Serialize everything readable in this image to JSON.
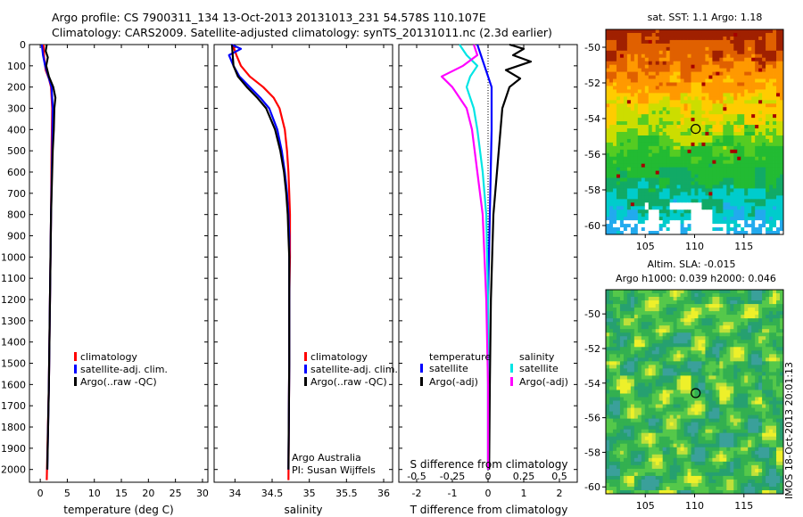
{
  "header": {
    "line1": "Argo profile: CS 7900311_134 13-Oct-2013 20131013_231 54.578S 110.107E",
    "line2": "Climatology: CARS2009. Satellite-adjusted climatology: synTS_20131011.nc (2.3d earlier)"
  },
  "colors": {
    "red": "#ff0000",
    "blue": "#0000ff",
    "black": "#000000",
    "cyan": "#00e5e5",
    "magenta": "#ff00ff"
  },
  "chart_data": [
    {
      "type": "line",
      "id": "temperature",
      "xlabel": "temperature (deg C)",
      "ylabel": "",
      "xlim": [
        -2,
        31
      ],
      "ylim": [
        2060,
        0
      ],
      "xticks": [
        0,
        5,
        10,
        15,
        20,
        25,
        30
      ],
      "yticks": [
        0,
        100,
        200,
        300,
        400,
        500,
        600,
        700,
        800,
        900,
        1000,
        1100,
        1200,
        1300,
        1400,
        1500,
        1600,
        1700,
        1800,
        1900,
        2000
      ],
      "legend": [
        "climatology",
        "satellite-adj. clim.",
        "Argo(..raw -QC)"
      ],
      "legend_position": "lower-center",
      "series": [
        {
          "name": "climatology",
          "color": "#ff0000",
          "depth": [
            0,
            60,
            120,
            160,
            200,
            300,
            500,
            800,
            1200,
            1600,
            2050
          ],
          "values": [
            0.6,
            0.7,
            1.0,
            1.6,
            2.0,
            2.2,
            2.1,
            2.0,
            1.8,
            1.6,
            1.2
          ]
        },
        {
          "name": "satellite-adj. clim.",
          "color": "#0000ff",
          "depth": [
            0,
            50,
            100,
            150,
            200,
            300,
            500,
            800,
            1200,
            1600,
            2000
          ],
          "values": [
            0.3,
            0.5,
            0.9,
            1.5,
            2.1,
            2.3,
            2.2,
            2.0,
            1.8,
            1.6,
            1.3
          ]
        },
        {
          "name": "Argo(..raw -QC)",
          "color": "#000000",
          "depth": [
            0,
            30,
            60,
            100,
            150,
            200,
            250,
            300,
            400,
            500,
            800,
            1200,
            1600,
            2000
          ],
          "values": [
            1.2,
            1.0,
            1.4,
            1.1,
            1.6,
            2.4,
            2.8,
            2.6,
            2.5,
            2.3,
            2.0,
            1.8,
            1.6,
            1.3
          ]
        }
      ]
    },
    {
      "type": "line",
      "id": "salinity",
      "xlabel": "salinity",
      "ylabel": "",
      "xlim": [
        33.72,
        36.12
      ],
      "ylim": [
        2060,
        0
      ],
      "xticks": [
        34,
        34.5,
        35,
        35.5,
        36
      ],
      "xticklabels": [
        "34",
        "34.5",
        "35",
        "35.5",
        "36"
      ],
      "legend": [
        "climatology",
        "satellite-adj. clim.",
        "Argo(..raw -QC)"
      ],
      "legend_position": "lower-right",
      "annotation": [
        "Argo Australia",
        "PI: Susan Wijffels"
      ],
      "series": [
        {
          "name": "climatology",
          "color": "#ff0000",
          "depth": [
            0,
            50,
            100,
            150,
            200,
            250,
            300,
            400,
            500,
            600,
            700,
            800,
            900,
            1000,
            1200,
            1500,
            2050
          ],
          "values": [
            33.97,
            34.02,
            34.08,
            34.2,
            34.38,
            34.52,
            34.6,
            34.67,
            34.7,
            34.72,
            34.73,
            34.74,
            34.74,
            34.74,
            34.73,
            34.73,
            34.72
          ]
        },
        {
          "name": "satellite-adj. clim.",
          "color": "#0000ff",
          "depth": [
            0,
            20,
            50,
            100,
            150,
            200,
            250,
            300,
            400,
            500,
            600,
            700,
            800,
            900,
            1000,
            1200,
            1500,
            2000
          ],
          "values": [
            33.95,
            34.08,
            33.92,
            33.98,
            34.06,
            34.2,
            34.34,
            34.46,
            34.57,
            34.63,
            34.67,
            34.7,
            34.72,
            34.73,
            34.73,
            34.73,
            34.73,
            34.72
          ]
        },
        {
          "name": "Argo(..raw -QC)",
          "color": "#000000",
          "depth": [
            0,
            50,
            100,
            150,
            200,
            250,
            300,
            400,
            500,
            600,
            700,
            800,
            900,
            1000,
            1200,
            1500,
            2000
          ],
          "values": [
            33.96,
            33.97,
            33.98,
            34.04,
            34.16,
            34.3,
            34.42,
            34.54,
            34.61,
            34.66,
            34.69,
            34.71,
            34.72,
            34.73,
            34.73,
            34.73,
            34.72
          ]
        }
      ]
    },
    {
      "type": "line",
      "id": "difference",
      "xlabel": "T difference from climatology",
      "xlabel_top": "S difference from climatology",
      "xlim": [
        -2.5,
        2.5
      ],
      "ylim": [
        2060,
        0
      ],
      "xticks": [
        -2,
        -1,
        0,
        1,
        2
      ],
      "xticks_S": [
        -0.5,
        -0.25,
        0,
        0.25,
        0.5
      ],
      "xticklabels_S": [
        "-0.5",
        "-0.25",
        "0",
        "0.25",
        "0.5"
      ],
      "legend_groups": [
        {
          "title": "temperature",
          "items": [
            "satellite",
            "Argo(-adj)"
          ]
        },
        {
          "title": "salinity",
          "items": [
            "satellite",
            "Argo(-adj)"
          ]
        }
      ],
      "series": [
        {
          "name": "temperature satellite",
          "color": "#0000ff",
          "depth": [
            0,
            50,
            100,
            200,
            400,
            800,
            1200,
            1600,
            2000
          ],
          "values": [
            -0.3,
            -0.2,
            -0.1,
            0.1,
            0.1,
            0.05,
            0.0,
            0.0,
            0.0
          ]
        },
        {
          "name": "temperature Argo(-adj)",
          "color": "#000000",
          "depth": [
            0,
            20,
            50,
            80,
            120,
            160,
            200,
            250,
            300,
            400,
            600,
            800,
            1200,
            1600,
            2000
          ],
          "values": [
            0.6,
            1.0,
            0.7,
            1.2,
            0.5,
            0.9,
            0.6,
            0.5,
            0.4,
            0.35,
            0.25,
            0.15,
            0.08,
            0.05,
            0.03
          ]
        },
        {
          "name": "salinity satellite",
          "color": "#00e5e5",
          "depth": [
            0,
            50,
            100,
            150,
            200,
            300,
            400,
            600,
            800,
            1200,
            1600,
            2000
          ],
          "values": [
            -0.8,
            -0.6,
            -0.3,
            -0.5,
            -0.6,
            -0.4,
            -0.3,
            -0.15,
            -0.05,
            0.0,
            0.0,
            0.0
          ]
        },
        {
          "name": "salinity Argo(-adj)",
          "color": "#ff00ff",
          "depth": [
            0,
            50,
            100,
            150,
            200,
            300,
            400,
            600,
            800,
            1200,
            1600,
            2000
          ],
          "values": [
            -0.4,
            -0.3,
            -0.7,
            -1.3,
            -1.0,
            -0.6,
            -0.45,
            -0.3,
            -0.15,
            -0.05,
            0.0,
            0.0
          ]
        }
      ]
    },
    {
      "type": "heatmap",
      "id": "sst-map",
      "title": "sat. SST: 1.1  Argo: 1.18",
      "xlim": [
        101,
        119
      ],
      "ylim": [
        -60.5,
        -49
      ],
      "xticks": [
        105,
        110,
        115
      ],
      "yticks": [
        -50,
        -52,
        -54,
        -56,
        -58,
        -60
      ],
      "marker": {
        "lon": 110.107,
        "lat": -54.578
      }
    },
    {
      "type": "heatmap",
      "id": "sla-map",
      "title": "Altim. SLA: -0.015",
      "subtitle": "Argo h1000: 0.039 h2000: 0.046",
      "xlim": [
        101,
        119
      ],
      "ylim": [
        -60.4,
        -48.6
      ],
      "xticks": [
        105,
        110,
        115
      ],
      "yticks": [
        -50,
        -52,
        -54,
        -56,
        -58,
        -60
      ],
      "marker": {
        "lon": 110.107,
        "lat": -54.578
      }
    }
  ],
  "side_label": "IMOS 18-Oct-2013 20:01:13"
}
